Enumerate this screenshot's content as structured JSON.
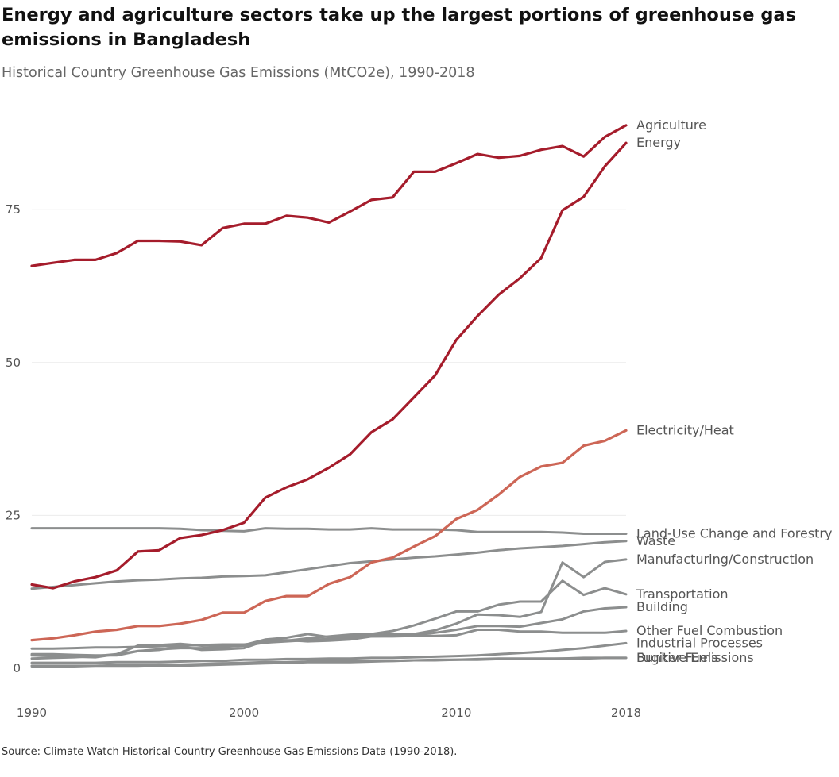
{
  "header": {
    "title": "Energy and agriculture sectors take up the largest portions of greenhouse gas emissions in Bangladesh",
    "subtitle": "Historical Country Greenhouse Gas Emissions (MtCO2e), 1990-2018"
  },
  "footer": {
    "source": "Source: Climate Watch Historical Country Greenhouse Gas Emissions Data (1990-2018)."
  },
  "colors": {
    "highlight_dark": "#a51c2b",
    "highlight_light": "#cd6656",
    "muted": "#8c8e8e",
    "grid": "#ececec"
  },
  "chart_data": {
    "type": "line",
    "title": "Historical Country Greenhouse Gas Emissions (MtCO2e), 1990-2018",
    "xlabel": "",
    "ylabel": "",
    "xlim": [
      1990,
      2018
    ],
    "ylim": [
      0,
      92
    ],
    "x_ticks": [
      1990,
      2000,
      2010,
      2018
    ],
    "y_ticks": [
      0,
      25,
      50,
      75
    ],
    "grid": "horizontal",
    "legend": "direct labels at line ends (right)",
    "x": [
      1990,
      1991,
      1992,
      1993,
      1994,
      1995,
      1996,
      1997,
      1998,
      1999,
      2000,
      2001,
      2002,
      2003,
      2004,
      2005,
      2006,
      2007,
      2008,
      2009,
      2010,
      2011,
      2012,
      2013,
      2014,
      2015,
      2016,
      2017,
      2018
    ],
    "series": [
      {
        "name": "Agriculture",
        "color": "#a51c2b",
        "values": [
          65.8,
          66.3,
          66.8,
          66.8,
          67.9,
          69.9,
          69.9,
          69.8,
          69.2,
          72.0,
          72.7,
          72.7,
          74.0,
          73.7,
          72.9,
          74.7,
          76.6,
          77.0,
          81.2,
          81.2,
          82.6,
          84.1,
          83.5,
          83.8,
          84.8,
          85.4,
          83.7,
          86.9,
          88.8
        ]
      },
      {
        "name": "Energy",
        "color": "#a51c2b",
        "values": [
          13.7,
          13.1,
          14.2,
          14.9,
          16.0,
          19.1,
          19.3,
          21.3,
          21.8,
          22.6,
          23.8,
          27.9,
          29.6,
          30.9,
          32.8,
          35.0,
          38.6,
          40.7,
          44.3,
          47.9,
          53.7,
          57.6,
          61.1,
          63.8,
          67.1,
          74.9,
          77.1,
          82.1,
          85.9
        ]
      },
      {
        "name": "Electricity/Heat",
        "color": "#cd6656",
        "values": [
          4.6,
          4.9,
          5.4,
          6.0,
          6.3,
          6.9,
          6.9,
          7.3,
          7.9,
          9.1,
          9.1,
          11.0,
          11.8,
          11.8,
          13.8,
          14.9,
          17.3,
          18.1,
          19.9,
          21.6,
          24.4,
          25.9,
          28.4,
          31.3,
          33.0,
          33.6,
          36.4,
          37.2,
          38.9
        ]
      },
      {
        "name": "Land-Use Change and Forestry",
        "color": "#8c8e8e",
        "values": [
          22.9,
          22.9,
          22.9,
          22.9,
          22.9,
          22.9,
          22.9,
          22.8,
          22.6,
          22.5,
          22.4,
          22.9,
          22.8,
          22.8,
          22.7,
          22.7,
          22.9,
          22.7,
          22.7,
          22.7,
          22.6,
          22.3,
          22.3,
          22.3,
          22.3,
          22.2,
          22.0,
          22.0,
          22.0
        ]
      },
      {
        "name": "Waste",
        "color": "#8c8e8e",
        "values": [
          13.0,
          13.3,
          13.6,
          13.9,
          14.2,
          14.4,
          14.5,
          14.7,
          14.8,
          15.0,
          15.1,
          15.2,
          15.7,
          16.2,
          16.7,
          17.2,
          17.5,
          17.8,
          18.1,
          18.3,
          18.6,
          18.9,
          19.3,
          19.6,
          19.8,
          20.0,
          20.3,
          20.6,
          20.8
        ]
      },
      {
        "name": "Manufacturing/Construction",
        "color": "#8c8e8e",
        "values": [
          2.1,
          2.0,
          1.9,
          1.8,
          2.3,
          3.7,
          3.8,
          4.0,
          3.7,
          3.8,
          3.8,
          4.7,
          5.0,
          5.6,
          5.1,
          5.2,
          5.4,
          5.6,
          5.6,
          6.2,
          7.3,
          8.8,
          8.7,
          8.4,
          9.2,
          17.3,
          14.9,
          17.4,
          17.8
        ]
      },
      {
        "name": "Transportation",
        "color": "#8c8e8e",
        "values": [
          1.6,
          1.7,
          1.8,
          2.0,
          2.3,
          2.8,
          3.1,
          3.3,
          3.3,
          3.5,
          3.7,
          4.2,
          4.5,
          4.9,
          5.2,
          5.5,
          5.6,
          6.1,
          7.0,
          8.1,
          9.3,
          9.3,
          10.4,
          10.9,
          10.9,
          14.3,
          12.0,
          13.1,
          12.1
        ]
      },
      {
        "name": "Building",
        "color": "#8c8e8e",
        "values": [
          2.3,
          2.3,
          2.2,
          2.1,
          2.1,
          2.8,
          3.0,
          3.6,
          3.0,
          3.1,
          3.3,
          4.5,
          4.6,
          4.4,
          4.5,
          4.7,
          5.2,
          5.3,
          5.4,
          5.8,
          6.3,
          6.9,
          6.9,
          6.8,
          7.4,
          8.0,
          9.3,
          9.8,
          10.0
        ]
      },
      {
        "name": "Other Fuel Combustion",
        "color": "#8c8e8e",
        "values": [
          3.2,
          3.2,
          3.3,
          3.4,
          3.4,
          3.5,
          3.6,
          3.7,
          3.8,
          3.9,
          3.9,
          4.2,
          4.4,
          4.6,
          4.8,
          5.0,
          5.2,
          5.2,
          5.3,
          5.3,
          5.4,
          6.3,
          6.3,
          6.0,
          6.0,
          5.8,
          5.8,
          5.8,
          6.1
        ]
      },
      {
        "name": "Industrial Processes",
        "color": "#8c8e8e",
        "values": [
          0.9,
          0.9,
          0.9,
          0.9,
          1.0,
          1.0,
          1.0,
          1.1,
          1.2,
          1.2,
          1.4,
          1.4,
          1.5,
          1.5,
          1.6,
          1.6,
          1.7,
          1.7,
          1.8,
          1.9,
          2.0,
          2.1,
          2.3,
          2.5,
          2.7,
          3.0,
          3.3,
          3.7,
          4.1
        ]
      },
      {
        "name": "Bunker Fuels",
        "color": "#8c8e8e",
        "values": [
          0.4,
          0.4,
          0.4,
          0.4,
          0.5,
          0.5,
          0.6,
          0.6,
          0.7,
          0.8,
          0.9,
          1.0,
          1.0,
          1.1,
          1.1,
          1.2,
          1.2,
          1.2,
          1.3,
          1.3,
          1.4,
          1.4,
          1.5,
          1.5,
          1.5,
          1.6,
          1.6,
          1.7,
          1.7
        ]
      },
      {
        "name": "Fugitive Emissions",
        "color": "#8c8e8e",
        "values": [
          0.2,
          0.2,
          0.2,
          0.3,
          0.3,
          0.3,
          0.4,
          0.4,
          0.5,
          0.6,
          0.7,
          0.8,
          0.9,
          1.0,
          1.0,
          1.0,
          1.1,
          1.2,
          1.3,
          1.4,
          1.4,
          1.5,
          1.6,
          1.6,
          1.6,
          1.6,
          1.7,
          1.7,
          1.7
        ]
      }
    ]
  }
}
